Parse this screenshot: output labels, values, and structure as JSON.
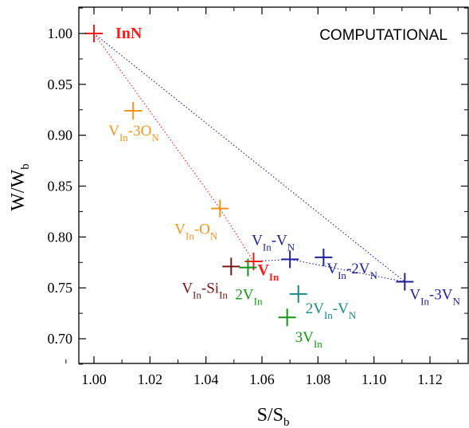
{
  "chart_data": {
    "type": "scatter",
    "title": "COMPUTATIONAL",
    "xlabel": {
      "main": "S/S",
      "sub": "b"
    },
    "ylabel": {
      "main": "W/W",
      "sub": "b"
    },
    "xlim": [
      0.985,
      1.135
    ],
    "ylim": [
      0.675,
      1.025
    ],
    "x_ticks": [
      {
        "value": 1.0,
        "label": "1.00"
      },
      {
        "value": 1.02,
        "label": "1.02"
      },
      {
        "value": 1.04,
        "label": "1.04"
      },
      {
        "value": 1.06,
        "label": "1.06"
      },
      {
        "value": 1.08,
        "label": "1.08"
      },
      {
        "value": 1.1,
        "label": "1.10"
      },
      {
        "value": 1.12,
        "label": "1.12"
      }
    ],
    "y_ticks": [
      {
        "value": 0.7,
        "label": "0.70"
      },
      {
        "value": 0.75,
        "label": "0.75"
      },
      {
        "value": 0.8,
        "label": "0.80"
      },
      {
        "value": 0.85,
        "label": "0.85"
      },
      {
        "value": 0.9,
        "label": "0.90"
      },
      {
        "value": 0.95,
        "label": "0.95"
      },
      {
        "value": 1.0,
        "label": "1.00"
      }
    ],
    "grid": false,
    "colors": {
      "red": "#ff1a1a",
      "orange": "#f7941d",
      "navy": "#1f1f9c",
      "green": "#149414",
      "teal": "#148a8a",
      "maroon": "#7a1414"
    },
    "points": [
      {
        "id": "inn",
        "x": 1.0,
        "y": 1.0,
        "color": "#ff1a1a",
        "label": [
          {
            "t": "InN"
          }
        ],
        "bold": true
      },
      {
        "id": "vin-3on",
        "x": 1.014,
        "y": 0.924,
        "color": "#f7941d",
        "label": [
          {
            "t": "V"
          },
          {
            "t": "In",
            "sub": true
          },
          {
            "t": "-3O"
          },
          {
            "t": "N",
            "sub": true
          }
        ]
      },
      {
        "id": "vin-on",
        "x": 1.045,
        "y": 0.828,
        "color": "#f7941d",
        "label": [
          {
            "t": "V"
          },
          {
            "t": "In",
            "sub": true
          },
          {
            "t": "-O"
          },
          {
            "t": "N",
            "sub": true
          }
        ]
      },
      {
        "id": "vin",
        "x": 1.057,
        "y": 0.776,
        "color": "#ff1a1a",
        "label": [
          {
            "t": "V"
          },
          {
            "t": "In",
            "sub": true
          }
        ],
        "bold": true
      },
      {
        "id": "vin-sin",
        "x": 1.049,
        "y": 0.771,
        "color": "#7a1414",
        "label": [
          {
            "t": "V"
          },
          {
            "t": "In",
            "sub": true
          },
          {
            "t": "-Si"
          },
          {
            "t": "In",
            "sub": true
          }
        ]
      },
      {
        "id": "2vin",
        "x": 1.055,
        "y": 0.77,
        "color": "#149414",
        "label": [
          {
            "t": "2V"
          },
          {
            "t": "In",
            "sub": true
          }
        ]
      },
      {
        "id": "vin-vn",
        "x": 1.07,
        "y": 0.778,
        "color": "#1f1f9c",
        "label": [
          {
            "t": "V"
          },
          {
            "t": "In",
            "sub": true
          },
          {
            "t": "-V"
          },
          {
            "t": "N",
            "sub": true
          }
        ]
      },
      {
        "id": "vin-2vn",
        "x": 1.082,
        "y": 0.78,
        "color": "#1f1f9c",
        "label": [
          {
            "t": "V"
          },
          {
            "t": "In",
            "sub": true
          },
          {
            "t": "-2V"
          },
          {
            "t": "N",
            "sub": true
          }
        ]
      },
      {
        "id": "vin-3vn",
        "x": 1.111,
        "y": 0.756,
        "color": "#1f1f9c",
        "label": [
          {
            "t": "V"
          },
          {
            "t": "In",
            "sub": true
          },
          {
            "t": "-3V"
          },
          {
            "t": "N",
            "sub": true
          }
        ]
      },
      {
        "id": "2vin-vn",
        "x": 1.073,
        "y": 0.744,
        "color": "#148a8a",
        "label": [
          {
            "t": "2V"
          },
          {
            "t": "In",
            "sub": true
          },
          {
            "t": "-V"
          },
          {
            "t": "N",
            "sub": true
          }
        ]
      },
      {
        "id": "3vin",
        "x": 1.069,
        "y": 0.721,
        "color": "#149414",
        "label": [
          {
            "t": "3V"
          },
          {
            "t": "In",
            "sub": true
          }
        ]
      }
    ],
    "lines": [
      {
        "id": "red-trend",
        "color": "#ff1a1a",
        "style": "dotted",
        "points": [
          [
            1.0,
            1.0
          ],
          [
            1.045,
            0.828
          ],
          [
            1.057,
            0.776
          ]
        ]
      },
      {
        "id": "navy-trend",
        "color": "#1f1f9c",
        "style": "dotted",
        "points": [
          [
            1.0,
            1.0
          ],
          [
            1.111,
            0.756
          ],
          [
            1.07,
            0.778
          ],
          [
            1.057,
            0.776
          ]
        ]
      }
    ]
  }
}
